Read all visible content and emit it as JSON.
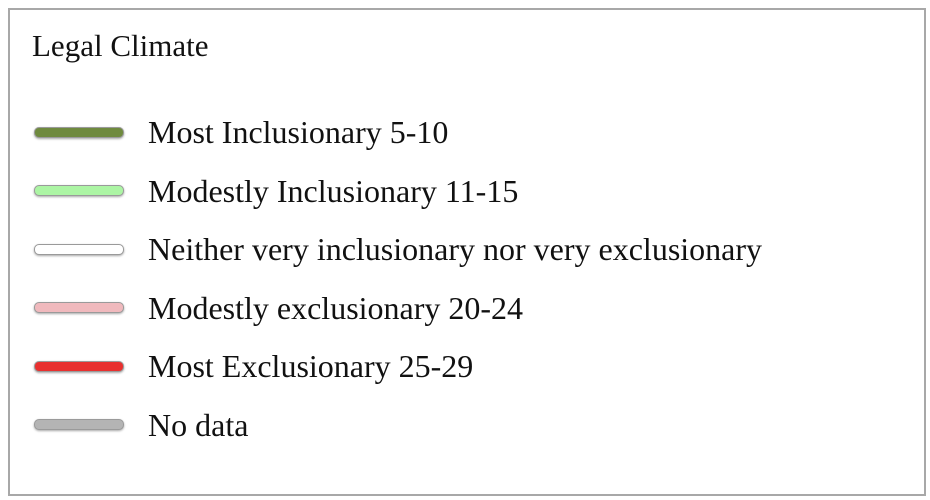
{
  "legend": {
    "title": "Legal Climate",
    "items": [
      {
        "label": "Most Inclusionary 5-10",
        "color": "#6f8a3e"
      },
      {
        "label": "Modestly Inclusionary 11-15",
        "color": "#acf5a4"
      },
      {
        "label": "Neither very inclusionary nor very exclusionary",
        "color": "#ffffff"
      },
      {
        "label": "Modestly exclusionary 20-24",
        "color": "#f0b9bd"
      },
      {
        "label": "Most Exclusionary 25-29",
        "color": "#e8302f"
      },
      {
        "label": "No data",
        "color": "#b4b4b4"
      }
    ]
  }
}
